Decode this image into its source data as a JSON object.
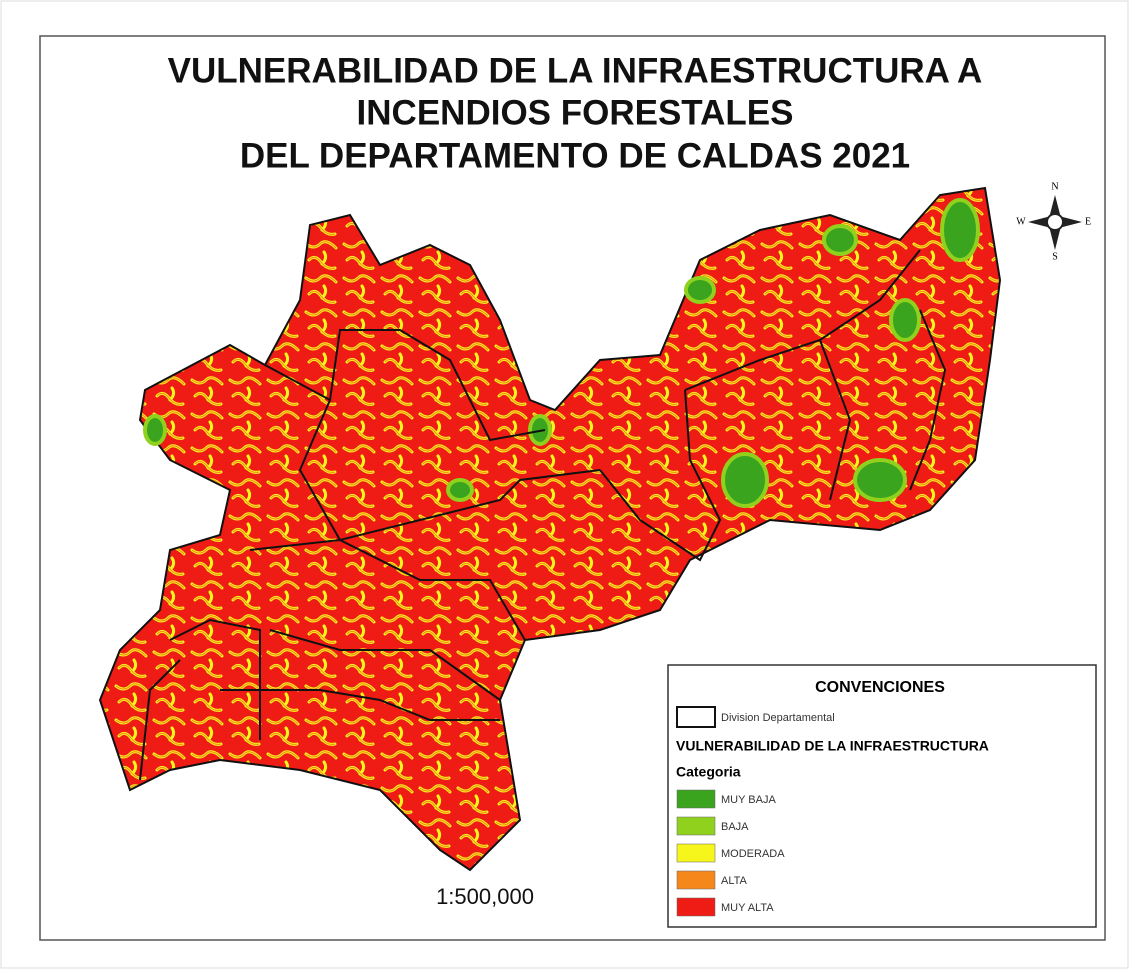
{
  "title": [
    "VULNERABILIDAD DE LA INFRAESTRUCTURA A",
    "INCENDIOS FORESTALES",
    "DEL DEPARTAMENTO DE CALDAS 2021"
  ],
  "compass": {
    "n": "N",
    "s": "S",
    "e": "E",
    "w": "W"
  },
  "legend": {
    "title": "CONVENCIONES",
    "boundary_label": "Division Departamental",
    "subtitle": "VULNERABILIDAD DE LA INFRAESTRUCTURA",
    "category_label": "Categoria",
    "items": [
      {
        "label": "MUY BAJA",
        "color": "#3aa41f"
      },
      {
        "label": "BAJA",
        "color": "#8fd11d"
      },
      {
        "label": "MODERADA",
        "color": "#f6f51c"
      },
      {
        "label": "ALTA",
        "color": "#f5871b"
      },
      {
        "label": "MUY ALTA",
        "color": "#ee1c15"
      }
    ]
  },
  "scale": "1:500,000"
}
